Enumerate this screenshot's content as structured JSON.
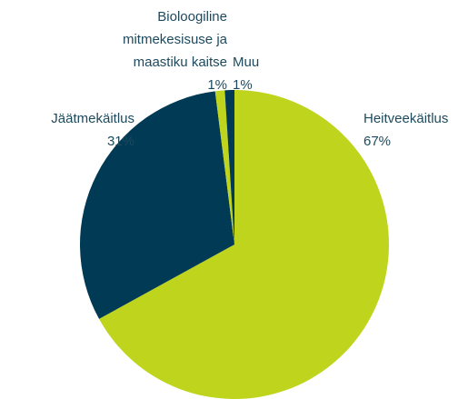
{
  "chart_data": {
    "type": "pie",
    "categories": [
      "Heitveekäitlus",
      "Jäätmekäitlus",
      "Bioloogiline mitmekesisuse ja maastiku kaitse",
      "Muu"
    ],
    "values": [
      67,
      31,
      1,
      1
    ],
    "value_labels": [
      "67%",
      "31%",
      "1%",
      "1%"
    ],
    "colors": [
      "#bfd41c",
      "#003a54",
      "#bfd41c",
      "#003a54"
    ]
  }
}
